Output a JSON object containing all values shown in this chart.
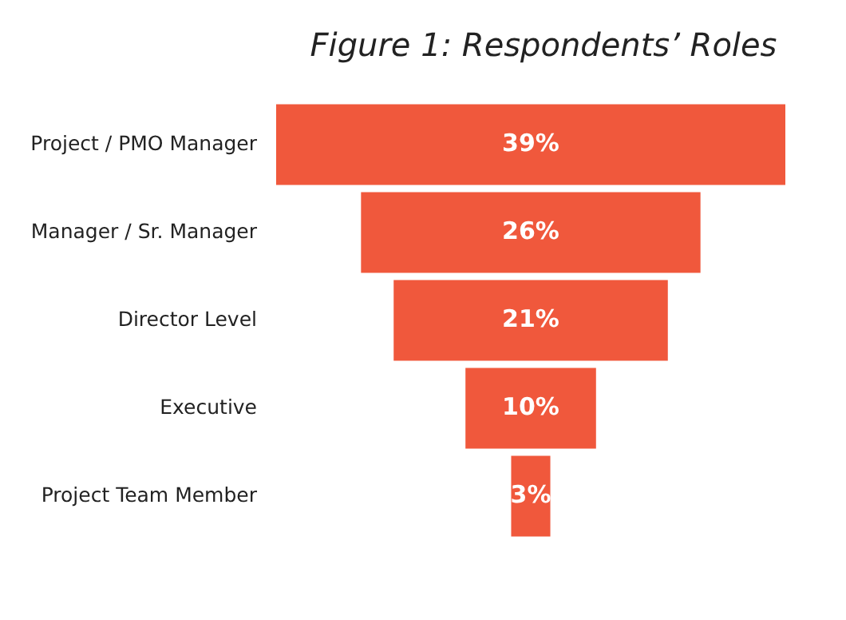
{
  "chart_data": {
    "type": "other",
    "title": "Figure 1: Respondents’ Roles",
    "categories": [
      "Project / PMO Manager",
      "Manager / Sr. Manager",
      "Director Level",
      "Executive",
      "Project Team Member"
    ],
    "values": [
      39,
      26,
      21,
      10,
      3
    ],
    "color": "#f0583c",
    "value_labels": [
      "39%",
      "26%",
      "21%",
      "10%",
      "3%"
    ]
  }
}
